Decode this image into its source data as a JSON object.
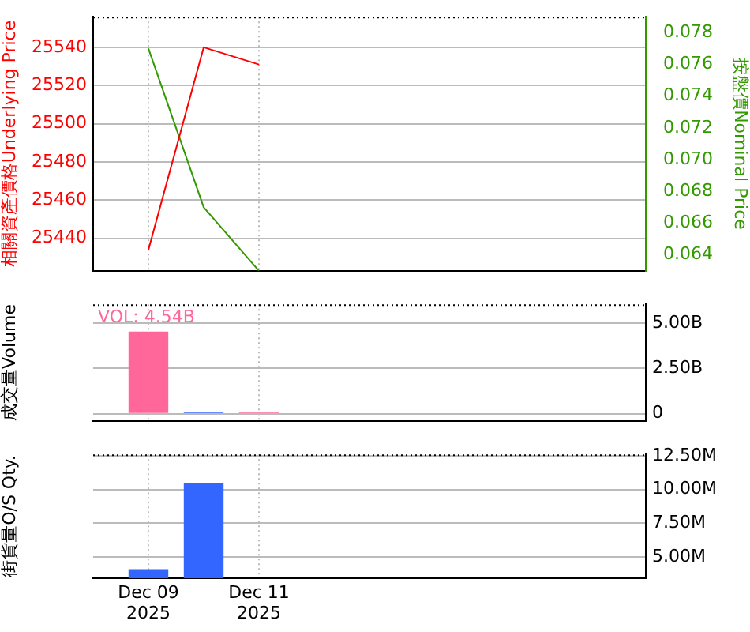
{
  "chart_data": [
    {
      "type": "line",
      "x": [
        "2025-12-09",
        "2025-12-10",
        "2025-12-11"
      ],
      "xlim": [
        "2025-12-08",
        "2025-12-18"
      ],
      "xticks": [
        {
          "value": "2025-12-09",
          "label": null
        },
        {
          "value": "2025-12-11",
          "label": null
        }
      ],
      "series": [
        {
          "color": "#ff0000",
          "values": [
            25434,
            25540,
            25531
          ]
        },
        {
          "color": "#339900",
          "values": [
            0.077,
            0.067,
            0.063
          ],
          "axis": "y2"
        }
      ],
      "ylabel": "相關資產價格Underlying Price",
      "y2label": "按盤價Nominal Price",
      "ylim": [
        25423,
        25556
      ],
      "yticks": [
        25440,
        25460,
        25480,
        25500,
        25520,
        25540
      ],
      "y2lim": [
        0.063,
        0.079
      ],
      "y2ticks": [
        0.064,
        0.066,
        0.068,
        {
          "value": 0.07,
          "label": "0.070"
        },
        0.072,
        0.074,
        0.076,
        0.078
      ],
      "grid": true,
      "legend": false,
      "tick_labels": "y"
    },
    {
      "type": "bar",
      "x": [
        "2025-12-09",
        "2025-12-10",
        "2025-12-11"
      ],
      "xlim": [
        "2025-12-08",
        "2025-12-18"
      ],
      "xticks": [
        {
          "value": "2025-12-09",
          "label": null
        },
        {
          "value": "2025-12-11",
          "label": null
        }
      ],
      "values": [
        4.54,
        0.1,
        0.1
      ],
      "colors": [
        "#ff6699",
        "#3366ff",
        "#ff6699"
      ],
      "ylabel": "成交量Volume",
      "ylim": [
        -0.4,
        6.05
      ],
      "yticks": [
        {
          "value": 0,
          "label": "0"
        },
        {
          "value": 2.5,
          "label": "2.50B"
        },
        {
          "value": 5,
          "label": "5.00B"
        }
      ],
      "annotations": [
        "VOL: 4.54B"
      ],
      "grid": true,
      "legend": false,
      "tick_labels": "y"
    },
    {
      "type": "bar",
      "x": [
        "2025-12-09",
        "2025-12-10"
      ],
      "xlim": [
        "2025-12-08",
        "2025-12-18"
      ],
      "xticks": [
        {
          "value": "2025-12-09",
          "label": "Dec 09\n2025"
        },
        {
          "value": "2025-12-11",
          "label": "Dec 11\n2025"
        }
      ],
      "values": [
        4.1,
        10.5
      ],
      "color": "#3366ff",
      "ylabel": "街貨量O/S Qty.",
      "ylim": [
        3.42,
        12.6
      ],
      "yticks": [
        {
          "value": 5,
          "label": "5.00M"
        },
        {
          "value": 7.5,
          "label": "7.50M"
        },
        {
          "value": 10,
          "label": "10.00M"
        },
        {
          "value": 12.5,
          "label": "12.50M"
        }
      ],
      "grid": true,
      "legend": false
    }
  ]
}
